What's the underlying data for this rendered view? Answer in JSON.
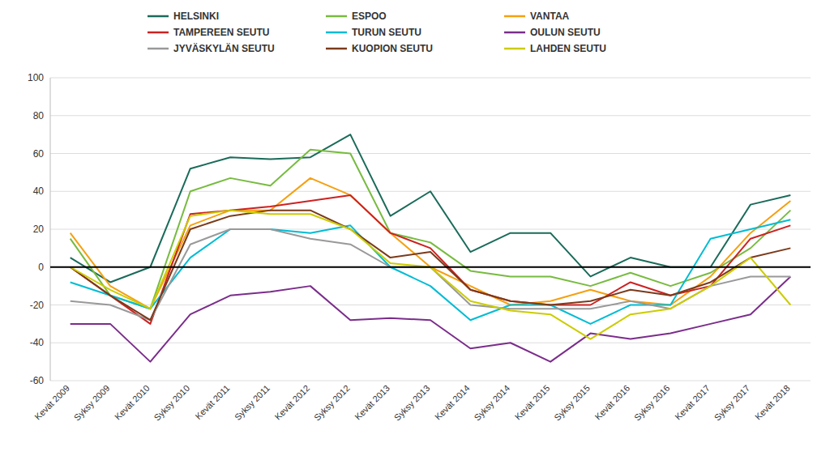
{
  "chart_data": {
    "type": "line",
    "categories": [
      "Kevät 2009",
      "Syksy 2009",
      "Kevät 2010",
      "Syksy 2010",
      "Kevät 2011",
      "Syksy 2011",
      "Kevät 2012",
      "Syksy 2012",
      "Kevät 2013",
      "Syksy 2013",
      "Kevät 2014",
      "Syksy 2014",
      "Kevät 2015",
      "Syksy 2015",
      "Kevät 2016",
      "Syksy 2016",
      "Kevät 2017",
      "Syksy 2017",
      "Kevät 2018"
    ],
    "series": [
      {
        "name": "HELSINKI",
        "color": "#1a6b5a",
        "values": [
          5,
          -8,
          0,
          52,
          58,
          57,
          58,
          70,
          27,
          40,
          8,
          18,
          18,
          -5,
          5,
          0,
          0,
          33,
          38
        ]
      },
      {
        "name": "ESPOO",
        "color": "#77bb3f",
        "values": [
          15,
          -15,
          -22,
          40,
          47,
          43,
          62,
          60,
          18,
          13,
          -2,
          -5,
          -5,
          -10,
          -3,
          -10,
          -3,
          10,
          30
        ]
      },
      {
        "name": "VANTAA",
        "color": "#f5a010",
        "values": [
          18,
          -10,
          -22,
          22,
          30,
          30,
          47,
          38,
          18,
          0,
          -10,
          -20,
          -18,
          -12,
          -18,
          -20,
          -5,
          18,
          35
        ]
      },
      {
        "name": "TAMPEREEN SEUTU",
        "color": "#cc2222",
        "values": [
          0,
          -15,
          -30,
          28,
          30,
          32,
          35,
          38,
          18,
          10,
          -12,
          -18,
          -20,
          -20,
          -8,
          -15,
          -10,
          15,
          22
        ]
      },
      {
        "name": "TURUN SEUTU",
        "color": "#00bcd4",
        "values": [
          -8,
          -15,
          -22,
          5,
          20,
          20,
          18,
          22,
          0,
          -10,
          -28,
          -20,
          -20,
          -30,
          -20,
          -20,
          15,
          20,
          25
        ]
      },
      {
        "name": "OULUN SEUTU",
        "color": "#7b2d8b",
        "values": [
          -30,
          -30,
          -50,
          -25,
          -15,
          -13,
          -10,
          -28,
          -27,
          -28,
          -43,
          -40,
          -50,
          -35,
          -38,
          -35,
          -30,
          -25,
          -5
        ]
      },
      {
        "name": "JYVÄSKYLÄN SEUTU",
        "color": "#999999",
        "values": [
          -18,
          -20,
          -28,
          12,
          20,
          20,
          15,
          12,
          0,
          0,
          -20,
          -22,
          -22,
          -22,
          -18,
          -22,
          -10,
          -5,
          -5
        ]
      },
      {
        "name": "KUOPION SEUTU",
        "color": "#7b3a1a",
        "values": [
          0,
          -15,
          -28,
          20,
          27,
          30,
          30,
          20,
          5,
          8,
          -12,
          -18,
          -20,
          -18,
          -12,
          -15,
          -8,
          5,
          10
        ]
      },
      {
        "name": "LAHDEN SEUTU",
        "color": "#cccc00",
        "values": [
          0,
          -12,
          -22,
          27,
          30,
          28,
          28,
          20,
          2,
          0,
          -18,
          -23,
          -25,
          -38,
          -25,
          -22,
          -10,
          5,
          -20
        ]
      }
    ],
    "ylim": [
      -60,
      100
    ],
    "yticks": [
      -60,
      -40,
      -20,
      0,
      20,
      40,
      60,
      80,
      100
    ],
    "grid": true,
    "legend": "top"
  }
}
